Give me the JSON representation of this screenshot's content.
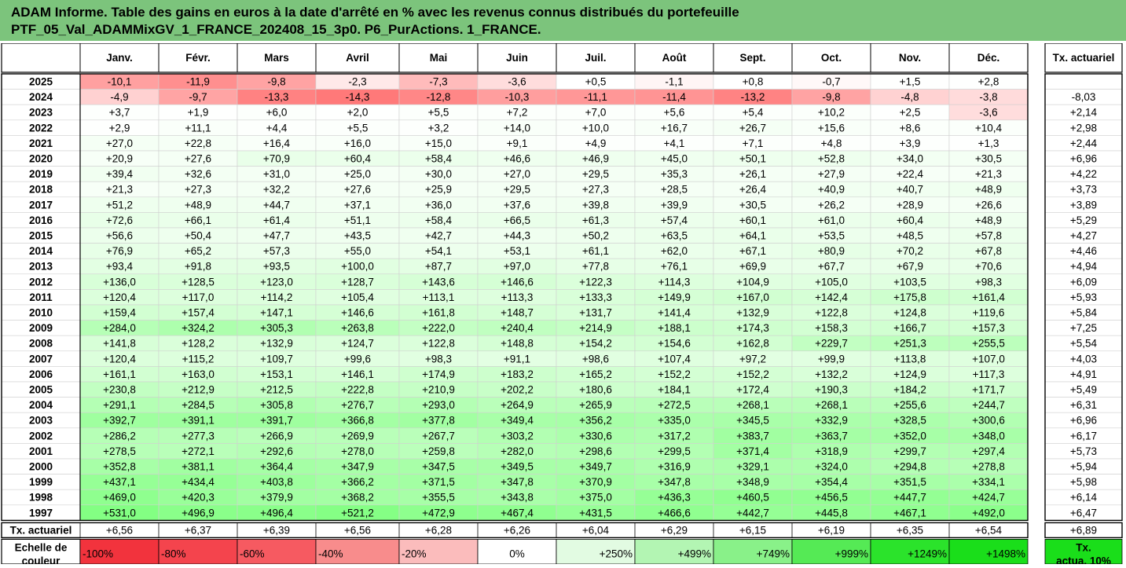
{
  "header": {
    "title_line1": "ADAM Informe. Table des gains en euros à la date d'arrêté en % avec les revenus connus distribués du portefeuille",
    "title_line2": "PTF_05_Val_ADAMMixGV_1_FRANCE_202408_15_3p0. P6_PurActions. 1_FRANCE."
  },
  "months": [
    "Janv.",
    "Févr.",
    "Mars",
    "Avril",
    "Mai",
    "Juin",
    "Juil.",
    "Août",
    "Sept.",
    "Oct.",
    "Nov.",
    "Déc."
  ],
  "rate_header": "Tx. actuariel",
  "rows": [
    {
      "year": "2025",
      "values": [
        "-10,1",
        "-11,9",
        "-9,8",
        "-2,3",
        "-7,3",
        "-3,6",
        "+0,5",
        "-1,1",
        "+0,8",
        "-0,7",
        "+1,5",
        "+2,8"
      ],
      "rate": ""
    },
    {
      "year": "2024",
      "values": [
        "-4,9",
        "-9,7",
        "-13,3",
        "-14,3",
        "-12,8",
        "-10,3",
        "-11,1",
        "-11,4",
        "-13,2",
        "-9,8",
        "-4,8",
        "-3,8"
      ],
      "rate": "-8,03"
    },
    {
      "year": "2023",
      "values": [
        "+3,7",
        "+1,9",
        "+6,0",
        "+2,0",
        "+5,5",
        "+7,2",
        "+7,0",
        "+5,6",
        "+5,4",
        "+10,2",
        "+2,5",
        "-3,6"
      ],
      "rate": "+2,14"
    },
    {
      "year": "2022",
      "values": [
        "+2,9",
        "+11,1",
        "+4,4",
        "+5,5",
        "+3,2",
        "+14,0",
        "+10,0",
        "+16,7",
        "+26,7",
        "+15,6",
        "+8,6",
        "+10,4"
      ],
      "rate": "+2,98"
    },
    {
      "year": "2021",
      "values": [
        "+27,0",
        "+22,8",
        "+16,4",
        "+16,0",
        "+15,0",
        "+9,1",
        "+4,9",
        "+4,1",
        "+7,1",
        "+4,8",
        "+3,9",
        "+1,3"
      ],
      "rate": "+2,44"
    },
    {
      "year": "2020",
      "values": [
        "+20,9",
        "+27,6",
        "+70,9",
        "+60,4",
        "+58,4",
        "+46,6",
        "+46,9",
        "+45,0",
        "+50,1",
        "+52,8",
        "+34,0",
        "+30,5"
      ],
      "rate": "+6,96"
    },
    {
      "year": "2019",
      "values": [
        "+39,4",
        "+32,6",
        "+31,0",
        "+25,0",
        "+30,0",
        "+27,0",
        "+29,5",
        "+35,3",
        "+26,1",
        "+27,9",
        "+22,4",
        "+21,3"
      ],
      "rate": "+4,22"
    },
    {
      "year": "2018",
      "values": [
        "+21,3",
        "+27,3",
        "+32,2",
        "+27,6",
        "+25,9",
        "+29,5",
        "+27,3",
        "+28,5",
        "+26,4",
        "+40,9",
        "+40,7",
        "+48,9"
      ],
      "rate": "+3,73"
    },
    {
      "year": "2017",
      "values": [
        "+51,2",
        "+48,9",
        "+44,7",
        "+37,1",
        "+36,0",
        "+37,6",
        "+39,8",
        "+39,9",
        "+30,5",
        "+26,2",
        "+28,9",
        "+26,6"
      ],
      "rate": "+3,89"
    },
    {
      "year": "2016",
      "values": [
        "+72,6",
        "+66,1",
        "+61,4",
        "+51,1",
        "+58,4",
        "+66,5",
        "+61,3",
        "+57,4",
        "+60,1",
        "+61,0",
        "+60,4",
        "+48,9"
      ],
      "rate": "+5,29"
    },
    {
      "year": "2015",
      "values": [
        "+56,6",
        "+50,4",
        "+47,7",
        "+43,5",
        "+42,7",
        "+44,3",
        "+50,2",
        "+63,5",
        "+64,1",
        "+53,5",
        "+48,5",
        "+57,8"
      ],
      "rate": "+4,27"
    },
    {
      "year": "2014",
      "values": [
        "+76,9",
        "+65,2",
        "+57,3",
        "+55,0",
        "+54,1",
        "+53,1",
        "+61,1",
        "+62,0",
        "+67,1",
        "+80,9",
        "+70,2",
        "+67,8"
      ],
      "rate": "+4,46"
    },
    {
      "year": "2013",
      "values": [
        "+93,4",
        "+91,8",
        "+93,5",
        "+100,0",
        "+87,7",
        "+97,0",
        "+77,8",
        "+76,1",
        "+69,9",
        "+67,7",
        "+67,9",
        "+70,6"
      ],
      "rate": "+4,94"
    },
    {
      "year": "2012",
      "values": [
        "+136,0",
        "+128,5",
        "+123,0",
        "+128,7",
        "+143,6",
        "+146,6",
        "+122,3",
        "+114,3",
        "+104,9",
        "+105,0",
        "+103,5",
        "+98,3"
      ],
      "rate": "+6,09"
    },
    {
      "year": "2011",
      "values": [
        "+120,4",
        "+117,0",
        "+114,2",
        "+105,4",
        "+113,1",
        "+113,3",
        "+133,3",
        "+149,9",
        "+167,0",
        "+142,4",
        "+175,8",
        "+161,4"
      ],
      "rate": "+5,93"
    },
    {
      "year": "2010",
      "values": [
        "+159,4",
        "+157,4",
        "+147,1",
        "+146,6",
        "+161,8",
        "+148,7",
        "+131,7",
        "+141,4",
        "+132,9",
        "+122,8",
        "+124,8",
        "+119,6"
      ],
      "rate": "+5,84"
    },
    {
      "year": "2009",
      "values": [
        "+284,0",
        "+324,2",
        "+305,3",
        "+263,8",
        "+222,0",
        "+240,4",
        "+214,9",
        "+188,1",
        "+174,3",
        "+158,3",
        "+166,7",
        "+157,3"
      ],
      "rate": "+7,25"
    },
    {
      "year": "2008",
      "values": [
        "+141,8",
        "+128,2",
        "+132,9",
        "+124,7",
        "+122,8",
        "+148,8",
        "+154,2",
        "+154,6",
        "+162,8",
        "+229,7",
        "+251,3",
        "+255,5"
      ],
      "rate": "+5,54"
    },
    {
      "year": "2007",
      "values": [
        "+120,4",
        "+115,2",
        "+109,7",
        "+99,6",
        "+98,3",
        "+91,1",
        "+98,6",
        "+107,4",
        "+97,2",
        "+99,9",
        "+113,8",
        "+107,0"
      ],
      "rate": "+4,03"
    },
    {
      "year": "2006",
      "values": [
        "+161,1",
        "+163,0",
        "+153,1",
        "+146,1",
        "+174,9",
        "+183,2",
        "+165,2",
        "+152,2",
        "+152,2",
        "+132,2",
        "+124,9",
        "+117,3"
      ],
      "rate": "+4,91"
    },
    {
      "year": "2005",
      "values": [
        "+230,8",
        "+212,9",
        "+212,5",
        "+222,8",
        "+210,9",
        "+202,2",
        "+180,6",
        "+184,1",
        "+172,4",
        "+190,3",
        "+184,2",
        "+171,7"
      ],
      "rate": "+5,49"
    },
    {
      "year": "2004",
      "values": [
        "+291,1",
        "+284,5",
        "+305,8",
        "+276,7",
        "+293,0",
        "+264,9",
        "+265,9",
        "+272,5",
        "+268,1",
        "+268,1",
        "+255,6",
        "+244,7"
      ],
      "rate": "+6,31"
    },
    {
      "year": "2003",
      "values": [
        "+392,7",
        "+391,1",
        "+391,7",
        "+366,8",
        "+377,8",
        "+349,4",
        "+356,2",
        "+335,0",
        "+345,5",
        "+332,9",
        "+328,5",
        "+300,6"
      ],
      "rate": "+6,96"
    },
    {
      "year": "2002",
      "values": [
        "+286,2",
        "+277,3",
        "+266,9",
        "+269,9",
        "+267,7",
        "+303,2",
        "+330,6",
        "+317,2",
        "+383,7",
        "+363,7",
        "+352,0",
        "+348,0"
      ],
      "rate": "+6,17"
    },
    {
      "year": "2001",
      "values": [
        "+278,5",
        "+272,1",
        "+292,6",
        "+278,0",
        "+259,8",
        "+282,0",
        "+298,6",
        "+299,5",
        "+371,4",
        "+318,9",
        "+299,7",
        "+297,4"
      ],
      "rate": "+5,73"
    },
    {
      "year": "2000",
      "values": [
        "+352,8",
        "+381,1",
        "+364,4",
        "+347,9",
        "+347,5",
        "+349,5",
        "+349,7",
        "+316,9",
        "+329,1",
        "+324,0",
        "+294,8",
        "+278,8"
      ],
      "rate": "+5,94"
    },
    {
      "year": "1999",
      "values": [
        "+437,1",
        "+434,4",
        "+403,8",
        "+366,2",
        "+371,5",
        "+347,8",
        "+370,9",
        "+347,8",
        "+348,9",
        "+354,4",
        "+351,5",
        "+334,1"
      ],
      "rate": "+5,98"
    },
    {
      "year": "1998",
      "values": [
        "+469,0",
        "+420,3",
        "+379,9",
        "+368,2",
        "+355,5",
        "+343,8",
        "+375,0",
        "+436,3",
        "+460,5",
        "+456,5",
        "+447,7",
        "+424,7"
      ],
      "rate": "+6,14"
    },
    {
      "year": "1997",
      "values": [
        "+531,0",
        "+496,9",
        "+496,4",
        "+521,2",
        "+472,9",
        "+467,4",
        "+431,5",
        "+466,6",
        "+442,7",
        "+445,8",
        "+467,1",
        "+492,0"
      ],
      "rate": "+6,47"
    }
  ],
  "summary": {
    "label": "Tx. actuariel",
    "values": [
      "+6,56",
      "+6,37",
      "+6,39",
      "+6,56",
      "+6,28",
      "+6,26",
      "+6,04",
      "+6,29",
      "+6,15",
      "+6,19",
      "+6,35",
      "+6,54"
    ],
    "rate": "+6,89"
  },
  "scale": {
    "label_line1": "Echelle de",
    "label_line2": "couleur",
    "steps": [
      "-100%",
      "-80%",
      "-60%",
      "-40%",
      "-20%",
      "0%",
      "+250%",
      "+499%",
      "+749%",
      "+999%",
      "+1249%",
      "+1498%"
    ],
    "step_colors": [
      "#f2333d",
      "#f4444d",
      "#f65a61",
      "#f88c8c",
      "#fbbcbc",
      "#ffffff",
      "#e2fbe2",
      "#b3f5b3",
      "#89f189",
      "#55ea55",
      "#2be32b",
      "#1ade1a"
    ],
    "rate_line1": "Tx.",
    "rate_line2": "actua. 10%",
    "rate_color": "#1ade1a"
  }
}
